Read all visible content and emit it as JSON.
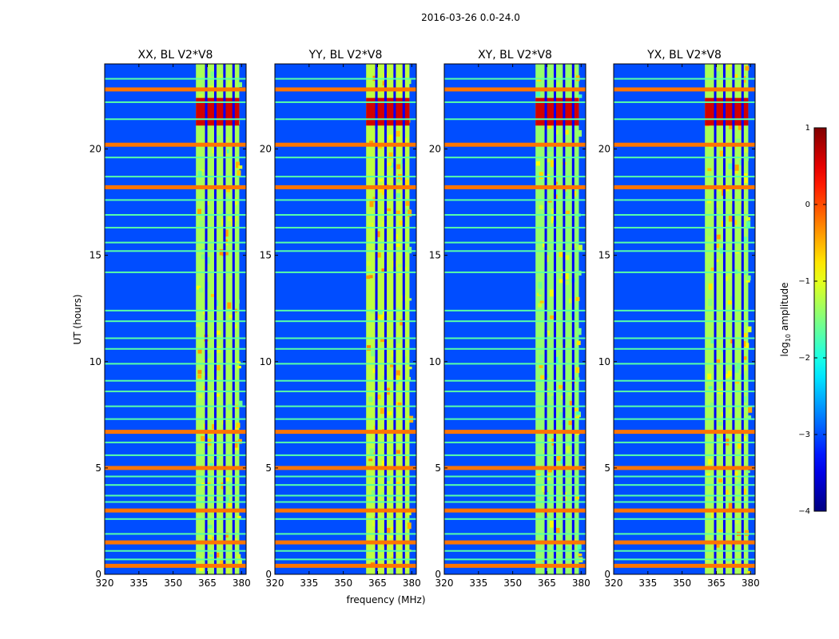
{
  "chart_data": {
    "type": "heatmap",
    "suptitle": "2016-03-26 0.0-24.0",
    "xlabel": "frequency (MHz)",
    "ylabel": "UT (hours)",
    "xlim": [
      320,
      382
    ],
    "ylim": [
      0,
      24
    ],
    "xticks": [
      320,
      335,
      350,
      365,
      380
    ],
    "yticks": [
      0,
      5,
      10,
      15,
      20
    ],
    "colorbar": {
      "label": "log10 amplitude",
      "label_base": "log",
      "label_sub": "10",
      "label_rest": " amplitude",
      "colormap": "jet",
      "range": [
        -4,
        1
      ],
      "ticks": [
        1,
        0,
        -1,
        -2,
        -3,
        -4
      ],
      "tick_labels": [
        "1",
        "0",
        "−1",
        "−2",
        "−3",
        "−4"
      ]
    },
    "common_features": {
      "background_level": -3.0,
      "bright_band_mhz": [
        360,
        379
      ],
      "bright_band_level": -1.4,
      "channel_gaps_mhz": [
        364.5,
        368.5,
        372.5,
        376.5
      ],
      "flagged_rows_strong_ut": [
        22.8,
        20.2,
        18.2,
        6.7,
        5.0,
        3.0,
        1.5,
        0.4
      ],
      "flagged_rows_weak_ut": [
        23.3,
        22.2,
        21.4,
        19.6,
        18.7,
        17.6,
        16.9,
        16.3,
        15.6,
        15.2,
        14.2,
        12.4,
        11.9,
        11.1,
        10.6,
        9.9,
        9.1,
        8.6,
        7.9,
        7.3,
        6.2,
        5.6,
        4.6,
        4.2,
        3.7,
        3.4,
        2.6,
        1.9,
        1.1,
        0.7
      ],
      "rfi_burst_ut": [
        21.1,
        22.4
      ],
      "rfi_burst_level": 0.6
    },
    "panels": [
      {
        "title": "XX, BL V2*V8",
        "band_level": -1.3
      },
      {
        "title": "YY, BL V2*V8",
        "band_level": -1.2
      },
      {
        "title": "XY, BL V2*V8",
        "band_level": -1.4
      },
      {
        "title": "YX, BL V2*V8",
        "band_level": -1.3
      }
    ]
  }
}
